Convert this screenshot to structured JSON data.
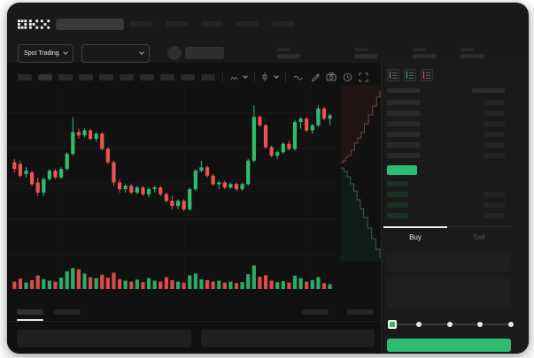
{
  "app": {
    "logo_text": "OKX"
  },
  "header": {
    "nav_placeholder_count": 5,
    "market_dropdown_label": "Spot Trading",
    "icons": [
      "search-input",
      "chevron-down-icon",
      "coin-icon"
    ]
  },
  "toolbar": {
    "placeholder_button_count": 10,
    "icons": [
      "interval-glyph",
      "chevron-down-icon",
      "candle-type-glyph",
      "chevron-down-icon",
      "indicator-wave-icon",
      "draw-pencil-icon",
      "camera-icon",
      "clock-icon",
      "fullscreen-icon"
    ]
  },
  "order_book": {
    "view_toggle_icons": [
      "book-combined-icon",
      "book-bids-icon",
      "book-asks-icon"
    ],
    "ask_row_count": 6,
    "bid_row_count": 4
  },
  "trade_panel": {
    "buy_label": "Buy",
    "sell_label": "Sell",
    "slider_stop_count": 5
  },
  "colors": {
    "up_green": "#2ebd70",
    "down_red": "#ef5350",
    "depth_ask_line": "#6d4347",
    "depth_bid_line": "#3a5f4c",
    "grid_line": "#1c1c1c",
    "window_bg": "#191919"
  },
  "chart_data": {
    "type": "candlestick+volume+depth",
    "title": "",
    "note": "no numeric axis labels visible; values normalized 0-100 price scale",
    "candles_ohlc_norm": [
      [
        56,
        58,
        50,
        52
      ],
      [
        55,
        57,
        47,
        48
      ],
      [
        49,
        53,
        47,
        51
      ],
      [
        50,
        51,
        42,
        43
      ],
      [
        44,
        47,
        36,
        38
      ],
      [
        38,
        47,
        36,
        46
      ],
      [
        46,
        52,
        45,
        51
      ],
      [
        51,
        52,
        46,
        47
      ],
      [
        47,
        53,
        46,
        52
      ],
      [
        52,
        62,
        51,
        61
      ],
      [
        61,
        83,
        60,
        74
      ],
      [
        74,
        76,
        70,
        72
      ],
      [
        72,
        76,
        71,
        75
      ],
      [
        75,
        76,
        69,
        70
      ],
      [
        70,
        74,
        68,
        73
      ],
      [
        73,
        74,
        63,
        64
      ],
      [
        64,
        65,
        55,
        56
      ],
      [
        56,
        57,
        42,
        44
      ],
      [
        44,
        46,
        38,
        40
      ],
      [
        40,
        43,
        38,
        42
      ],
      [
        42,
        43,
        37,
        38
      ],
      [
        38,
        42,
        37,
        41
      ],
      [
        41,
        42,
        36,
        37
      ],
      [
        37,
        41,
        35,
        40
      ],
      [
        40,
        42,
        38,
        41
      ],
      [
        41,
        42,
        36,
        37
      ],
      [
        37,
        38,
        32,
        33
      ],
      [
        33,
        36,
        28,
        30
      ],
      [
        30,
        34,
        28,
        33
      ],
      [
        33,
        34,
        27,
        28
      ],
      [
        28,
        41,
        27,
        40
      ],
      [
        40,
        52,
        39,
        51
      ],
      [
        51,
        57,
        50,
        53
      ],
      [
        53,
        54,
        47,
        48
      ],
      [
        48,
        49,
        42,
        43
      ],
      [
        43,
        45,
        40,
        44
      ],
      [
        44,
        45,
        40,
        41
      ],
      [
        41,
        44,
        40,
        43
      ],
      [
        43,
        44,
        39,
        40
      ],
      [
        40,
        44,
        39,
        43
      ],
      [
        43,
        58,
        42,
        57
      ],
      [
        57,
        90,
        56,
        83
      ],
      [
        83,
        84,
        77,
        78
      ],
      [
        78,
        79,
        64,
        65
      ],
      [
        65,
        66,
        59,
        60
      ],
      [
        60,
        63,
        58,
        62
      ],
      [
        62,
        68,
        61,
        67
      ],
      [
        67,
        69,
        63,
        64
      ],
      [
        64,
        81,
        63,
        80
      ],
      [
        80,
        83,
        76,
        82
      ],
      [
        82,
        83,
        74,
        75
      ],
      [
        75,
        79,
        73,
        78
      ],
      [
        78,
        90,
        77,
        88
      ],
      [
        88,
        89,
        81,
        82
      ],
      [
        82,
        85,
        78,
        84
      ]
    ],
    "volumes_norm": [
      30,
      42,
      26,
      36,
      55,
      40,
      34,
      30,
      46,
      72,
      85,
      80,
      62,
      48,
      44,
      58,
      46,
      66,
      40,
      34,
      30,
      38,
      28,
      44,
      34,
      30,
      48,
      36,
      30,
      26,
      56,
      62,
      40,
      36,
      30,
      34,
      26,
      30,
      24,
      28,
      60,
      95,
      50,
      56,
      34,
      28,
      32,
      26,
      54,
      44,
      30,
      36,
      48,
      24,
      20
    ],
    "depth": {
      "asks": [
        [
          0.04,
          0.44
        ],
        [
          0.1,
          0.43
        ],
        [
          0.16,
          0.41
        ],
        [
          0.22,
          0.4
        ],
        [
          0.3,
          0.37
        ],
        [
          0.38,
          0.33
        ],
        [
          0.46,
          0.3
        ],
        [
          0.54,
          0.27
        ],
        [
          0.62,
          0.22
        ],
        [
          0.72,
          0.17
        ],
        [
          0.82,
          0.12
        ],
        [
          0.92,
          0.07
        ],
        [
          1.0,
          0.03
        ]
      ],
      "bids": [
        [
          0.04,
          0.47
        ],
        [
          0.12,
          0.49
        ],
        [
          0.2,
          0.52
        ],
        [
          0.28,
          0.56
        ],
        [
          0.36,
          0.6
        ],
        [
          0.44,
          0.65
        ],
        [
          0.52,
          0.7
        ],
        [
          0.6,
          0.75
        ],
        [
          0.7,
          0.81
        ],
        [
          0.8,
          0.87
        ],
        [
          0.9,
          0.93
        ],
        [
          1.0,
          0.98
        ]
      ]
    },
    "grid": {
      "horizontal_lines": 5,
      "vertical_lines": 3,
      "legend": "none",
      "axes_labels": "none"
    }
  }
}
